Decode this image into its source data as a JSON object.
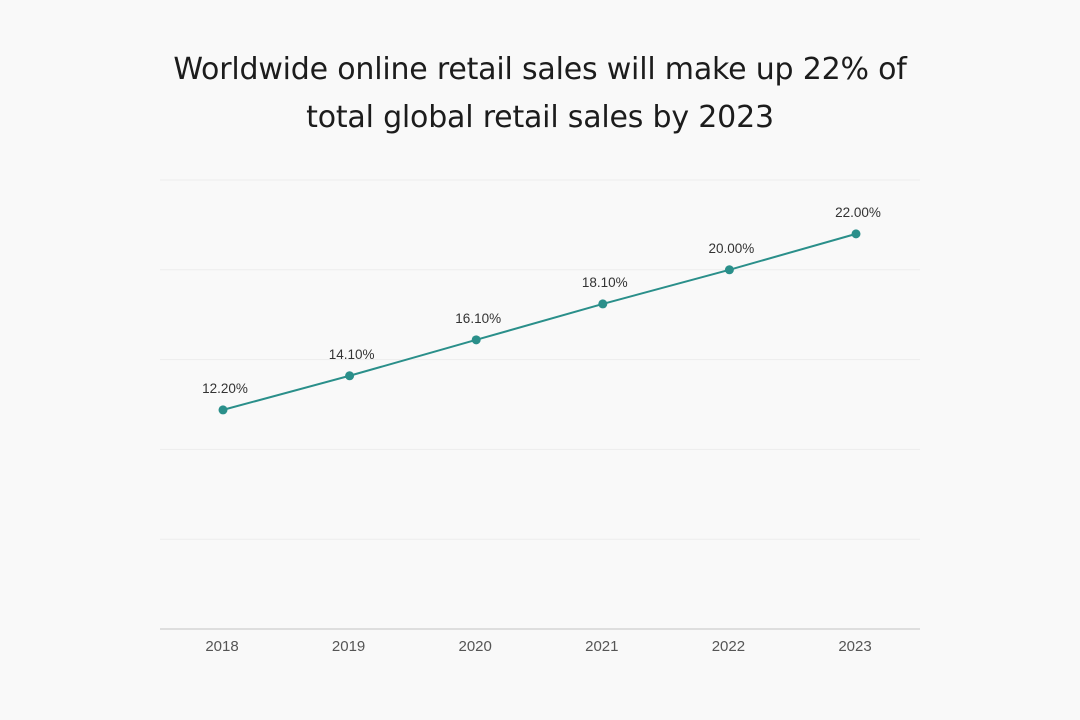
{
  "chart_data": {
    "type": "line",
    "title": "Worldwide online retail sales will make up 22% of total global retail sales by 2023",
    "xlabel": "",
    "ylabel": "",
    "categories": [
      "2018",
      "2019",
      "2020",
      "2021",
      "2022",
      "2023"
    ],
    "series": [
      {
        "values": [
          12.2,
          14.1,
          16.1,
          18.1,
          20.0,
          22.0
        ],
        "data_labels": [
          "12.20%",
          "14.10%",
          "16.10%",
          "18.10%",
          "20.00%",
          "22.00%"
        ]
      }
    ],
    "ylim": [
      0,
      25
    ],
    "grid": true,
    "y_tick_labels_shown": false,
    "legend": "none",
    "colors": {
      "line": "#2a8f8a",
      "marker": "#2a8f8a",
      "grid": "#ededed",
      "axis": "#cfcfcf",
      "background": "#f9f9f9"
    }
  }
}
